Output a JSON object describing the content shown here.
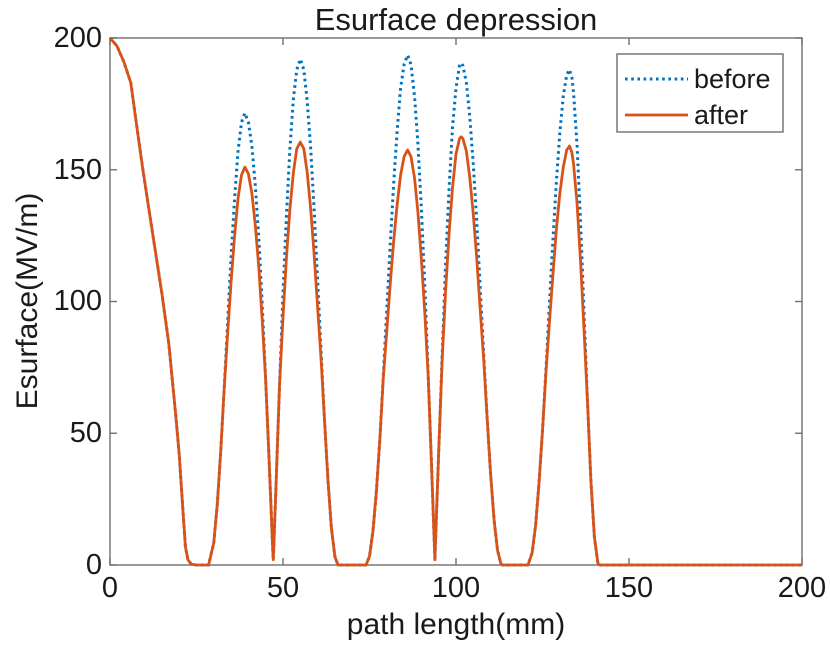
{
  "figure": {
    "background": "#ffffff",
    "axis_color": "#6e6e6e",
    "text_color": "#1a1a1a"
  },
  "legend": {
    "position": "northeast",
    "items": [
      {
        "label": "before",
        "color": "#0072BD",
        "style": "dotted"
      },
      {
        "label": "after",
        "color": "#D95319",
        "style": "solid"
      }
    ]
  },
  "chart_data": {
    "type": "line",
    "title": "Esurface depression",
    "xlabel": "path length(mm)",
    "ylabel": "Esurface(MV/m)",
    "xlim": [
      0,
      200
    ],
    "ylim": [
      0,
      200
    ],
    "xticks": [
      0,
      50,
      100,
      150,
      200
    ],
    "yticks": [
      0,
      50,
      100,
      150,
      200
    ],
    "grid": false,
    "legend_position": "northeast",
    "peaks": [
      {
        "x": 39,
        "before": 171.5,
        "after": 151.0
      },
      {
        "x": 55,
        "before": 192.0,
        "after": 160.5
      },
      {
        "x": 86,
        "before": 193.5,
        "after": 157.5
      },
      {
        "x": 101.5,
        "before": 190.5,
        "after": 162.5
      },
      {
        "x": 132.8,
        "before": 188.0,
        "after": 159.0
      }
    ],
    "series": [
      {
        "name": "before",
        "color": "#0072BD",
        "line_style": "dotted",
        "line_width": 3,
        "points": [
          [
            0,
            200
          ],
          [
            2,
            197
          ],
          [
            4,
            191
          ],
          [
            6,
            183
          ],
          [
            8,
            164
          ],
          [
            9.5,
            150
          ],
          [
            11,
            137
          ],
          [
            13,
            120
          ],
          [
            15,
            103
          ],
          [
            17,
            84
          ],
          [
            19,
            57
          ],
          [
            20,
            42
          ],
          [
            21,
            22
          ],
          [
            21.8,
            7
          ],
          [
            22.5,
            2
          ],
          [
            23.5,
            0.3
          ],
          [
            25,
            0
          ],
          [
            28.5,
            0
          ],
          [
            30,
            8.5
          ],
          [
            31,
            23
          ],
          [
            32,
            43
          ],
          [
            33,
            67
          ],
          [
            34,
            92
          ],
          [
            35,
            117
          ],
          [
            36,
            139
          ],
          [
            37,
            157
          ],
          [
            38,
            168
          ],
          [
            39,
            171.5
          ],
          [
            40,
            168
          ],
          [
            41,
            159
          ],
          [
            42,
            144
          ],
          [
            43,
            124
          ],
          [
            44,
            99
          ],
          [
            45,
            70
          ],
          [
            46,
            39
          ],
          [
            47,
            7
          ],
          [
            47.2,
            2
          ],
          [
            48,
            31
          ],
          [
            49,
            68
          ],
          [
            50,
            103
          ],
          [
            51,
            133
          ],
          [
            52,
            158
          ],
          [
            53,
            177
          ],
          [
            54,
            188
          ],
          [
            55,
            192
          ],
          [
            56,
            188
          ],
          [
            57,
            176
          ],
          [
            58,
            158
          ],
          [
            59,
            135
          ],
          [
            60,
            108
          ],
          [
            61,
            81
          ],
          [
            62,
            55
          ],
          [
            63,
            32
          ],
          [
            64,
            14
          ],
          [
            65,
            3.2
          ],
          [
            65.9,
            0
          ],
          [
            67,
            0
          ],
          [
            74,
            0
          ],
          [
            75,
            3.3
          ],
          [
            76,
            13
          ],
          [
            77,
            28
          ],
          [
            78,
            48
          ],
          [
            79,
            72
          ],
          [
            80,
            97
          ],
          [
            81,
            122
          ],
          [
            82,
            145
          ],
          [
            83,
            165
          ],
          [
            84,
            181
          ],
          [
            85,
            190
          ],
          [
            86,
            193.5
          ],
          [
            87,
            190
          ],
          [
            88,
            178
          ],
          [
            89,
            160
          ],
          [
            90,
            135
          ],
          [
            91,
            105
          ],
          [
            92,
            71
          ],
          [
            93,
            35
          ],
          [
            93.9,
            2
          ],
          [
            95,
            43
          ],
          [
            96,
            80
          ],
          [
            97,
            114
          ],
          [
            98,
            143
          ],
          [
            99,
            166
          ],
          [
            100,
            181
          ],
          [
            101,
            189.5
          ],
          [
            101.5,
            190.5
          ],
          [
            102,
            189.5
          ],
          [
            103,
            183
          ],
          [
            104,
            170
          ],
          [
            105,
            152
          ],
          [
            106,
            130
          ],
          [
            107,
            105
          ],
          [
            108,
            80
          ],
          [
            109,
            56
          ],
          [
            110,
            34.5
          ],
          [
            111,
            17
          ],
          [
            112,
            5.6
          ],
          [
            113,
            0.3
          ],
          [
            113.5,
            0
          ],
          [
            115,
            0
          ],
          [
            120.8,
            0
          ],
          [
            122,
            4.6
          ],
          [
            123,
            15
          ],
          [
            124,
            31
          ],
          [
            125,
            51
          ],
          [
            126,
            74.5
          ],
          [
            127,
            99
          ],
          [
            128,
            123
          ],
          [
            129,
            145
          ],
          [
            130,
            164
          ],
          [
            131,
            178
          ],
          [
            132,
            186
          ],
          [
            132.8,
            188
          ],
          [
            133.5,
            185
          ],
          [
            134,
            179
          ],
          [
            135,
            159
          ],
          [
            136,
            129.5
          ],
          [
            137,
            96
          ],
          [
            138,
            62
          ],
          [
            139,
            32
          ],
          [
            140,
            10.6
          ],
          [
            141,
            0.6
          ],
          [
            141.5,
            0
          ],
          [
            145,
            0
          ],
          [
            160,
            0
          ],
          [
            180,
            0
          ],
          [
            200,
            0
          ]
        ]
      },
      {
        "name": "after",
        "color": "#D95319",
        "line_style": "solid",
        "line_width": 2.8,
        "points": [
          [
            0,
            200
          ],
          [
            2,
            197
          ],
          [
            4,
            191
          ],
          [
            6,
            183
          ],
          [
            8,
            164
          ],
          [
            9.5,
            150
          ],
          [
            11,
            137
          ],
          [
            13,
            120
          ],
          [
            15,
            103
          ],
          [
            17,
            84
          ],
          [
            19,
            57
          ],
          [
            20,
            42
          ],
          [
            21,
            22
          ],
          [
            21.8,
            7
          ],
          [
            22.5,
            2
          ],
          [
            23.5,
            0.3
          ],
          [
            25,
            0
          ],
          [
            28.5,
            0
          ],
          [
            30,
            8.5
          ],
          [
            31,
            23
          ],
          [
            32,
            43
          ],
          [
            33,
            67
          ],
          [
            34,
            87.6
          ],
          [
            35,
            107.5
          ],
          [
            36,
            125
          ],
          [
            37,
            139
          ],
          [
            38,
            148
          ],
          [
            39,
            151
          ],
          [
            40,
            148.5
          ],
          [
            41,
            141
          ],
          [
            42,
            129
          ],
          [
            43,
            113
          ],
          [
            44,
            93
          ],
          [
            45,
            70
          ],
          [
            46,
            39
          ],
          [
            47,
            7
          ],
          [
            47.2,
            2
          ],
          [
            48,
            31
          ],
          [
            49,
            68
          ],
          [
            50,
            94
          ],
          [
            51,
            117
          ],
          [
            52,
            135
          ],
          [
            53,
            149
          ],
          [
            54,
            158
          ],
          [
            55,
            160.5
          ],
          [
            56,
            158
          ],
          [
            57,
            149
          ],
          [
            58,
            135
          ],
          [
            59,
            118
          ],
          [
            60,
            98
          ],
          [
            61,
            78
          ],
          [
            62,
            55
          ],
          [
            63,
            32
          ],
          [
            64,
            14
          ],
          [
            65,
            3.2
          ],
          [
            65.9,
            0
          ],
          [
            67,
            0
          ],
          [
            74,
            0
          ],
          [
            75,
            3.3
          ],
          [
            76,
            13
          ],
          [
            77,
            28
          ],
          [
            78,
            48
          ],
          [
            79,
            71
          ],
          [
            80,
            89
          ],
          [
            81,
            107
          ],
          [
            82,
            123
          ],
          [
            83,
            137
          ],
          [
            84,
            148
          ],
          [
            85,
            155
          ],
          [
            86,
            157.5
          ],
          [
            87,
            155
          ],
          [
            88,
            147
          ],
          [
            89,
            134
          ],
          [
            90,
            116
          ],
          [
            91,
            95
          ],
          [
            92,
            70.8
          ],
          [
            93,
            35
          ],
          [
            93.9,
            2
          ],
          [
            95,
            43
          ],
          [
            96,
            78
          ],
          [
            97,
            104
          ],
          [
            98,
            126
          ],
          [
            99,
            143
          ],
          [
            100,
            156
          ],
          [
            101,
            161.8
          ],
          [
            101.5,
            162.5
          ],
          [
            102,
            161.8
          ],
          [
            103,
            157
          ],
          [
            104,
            147
          ],
          [
            105,
            133
          ],
          [
            106,
            116
          ],
          [
            107,
            97
          ],
          [
            108,
            78
          ],
          [
            109,
            56
          ],
          [
            110,
            34.5
          ],
          [
            111,
            17
          ],
          [
            112,
            5.6
          ],
          [
            113,
            0.3
          ],
          [
            113.5,
            0
          ],
          [
            115,
            0
          ],
          [
            120.8,
            0
          ],
          [
            122,
            4.6
          ],
          [
            123,
            15
          ],
          [
            124,
            31
          ],
          [
            125,
            51
          ],
          [
            126,
            73.4
          ],
          [
            127,
            92
          ],
          [
            128,
            110
          ],
          [
            129,
            127
          ],
          [
            130,
            141
          ],
          [
            131,
            151
          ],
          [
            132,
            157.5
          ],
          [
            132.8,
            159
          ],
          [
            133.5,
            156.6
          ],
          [
            134,
            152
          ],
          [
            135,
            137
          ],
          [
            136,
            115
          ],
          [
            137,
            89.3
          ],
          [
            138,
            62
          ],
          [
            139,
            32
          ],
          [
            140,
            10.6
          ],
          [
            141,
            0.6
          ],
          [
            141.5,
            0
          ],
          [
            145,
            0
          ],
          [
            160,
            0
          ],
          [
            180,
            0
          ],
          [
            200,
            0
          ]
        ]
      }
    ]
  }
}
